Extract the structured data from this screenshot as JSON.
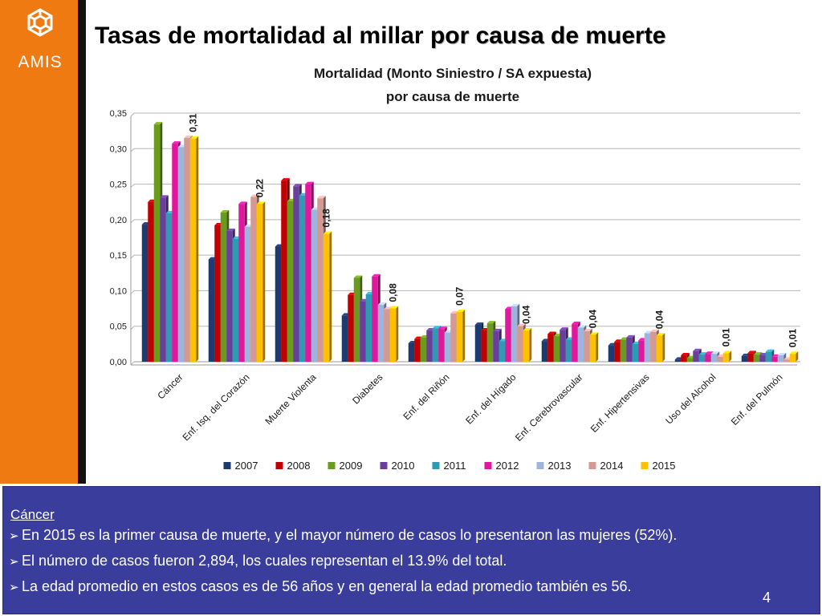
{
  "slide": {
    "title_prefix": "Tasas de mortalidad al millar ",
    "title_emphasis": "por causa de muerte",
    "logo_text": "AMIS",
    "page_number": "4"
  },
  "notes": {
    "heading": "Cáncer",
    "bullets": [
      "En 2015 es la primer causa de muerte, y el mayor número de casos lo presentaron las mujeres (52%).",
      "El número de casos fueron 2,894, los cuales representan el 13.9% del total.",
      "La edad promedio en estos casos es de 56 años y en general la edad promedio también es 56."
    ]
  },
  "chart_data": {
    "type": "bar",
    "title": "Mortalidad (Monto Siniestro / SA expuesta)",
    "subtitle": "por causa de muerte",
    "xlabel": "",
    "ylabel": "",
    "ylim": [
      0,
      0.35
    ],
    "yticks": [
      "0,00",
      "0,05",
      "0,10",
      "0,15",
      "0,20",
      "0,25",
      "0,30",
      "0,35"
    ],
    "legend_position": "bottom",
    "categories": [
      "Cáncer",
      "Enf. Isq. del Corazón",
      "Muerte Violenta",
      "Diabetes",
      "Enf. del Riñón",
      "Enf. del Hígado",
      "Enf. Cerebrovascular",
      "Enf. Hipertensivas",
      "Uso del Alcohol",
      "Enf. del Pulmón"
    ],
    "series": [
      {
        "name": "2007",
        "color": "#1f3a6e",
        "values": [
          0.193,
          0.144,
          0.162,
          0.065,
          0.026,
          0.052,
          0.029,
          0.023,
          0.003,
          0.008
        ]
      },
      {
        "name": "2008",
        "color": "#c00000",
        "values": [
          0.225,
          0.192,
          0.255,
          0.094,
          0.032,
          0.044,
          0.039,
          0.028,
          0.009,
          0.012
        ]
      },
      {
        "name": "2009",
        "color": "#6b9a1f",
        "values": [
          0.334,
          0.21,
          0.226,
          0.118,
          0.034,
          0.054,
          0.036,
          0.031,
          0.005,
          0.01
        ]
      },
      {
        "name": "2010",
        "color": "#6a3f9c",
        "values": [
          0.231,
          0.184,
          0.247,
          0.085,
          0.044,
          0.043,
          0.045,
          0.034,
          0.015,
          0.009
        ]
      },
      {
        "name": "2011",
        "color": "#2e9ab4",
        "values": [
          0.209,
          0.173,
          0.234,
          0.095,
          0.047,
          0.029,
          0.031,
          0.025,
          0.01,
          0.014
        ]
      },
      {
        "name": "2012",
        "color": "#e0189c",
        "values": [
          0.307,
          0.222,
          0.25,
          0.12,
          0.046,
          0.074,
          0.053,
          0.03,
          0.011,
          0.007
        ]
      },
      {
        "name": "2013",
        "color": "#9fb4dc",
        "values": [
          0.302,
          0.19,
          0.214,
          0.08,
          0.041,
          0.078,
          0.048,
          0.04,
          0.011,
          0.009
        ]
      },
      {
        "name": "2014",
        "color": "#d39a94",
        "values": [
          0.315,
          0.232,
          0.23,
          0.074,
          0.068,
          0.05,
          0.043,
          0.042,
          0.007,
          0.003
        ]
      },
      {
        "name": "2015",
        "color": "#ffc000",
        "values": [
          0.314,
          0.222,
          0.18,
          0.075,
          0.07,
          0.044,
          0.038,
          0.037,
          0.012,
          0.011
        ]
      }
    ],
    "data_labels": [
      "0,31",
      "0,22",
      "0,18",
      "0,08",
      "0,07",
      "0,04",
      "0,04",
      "0,04",
      "0,01",
      "0,01"
    ]
  }
}
